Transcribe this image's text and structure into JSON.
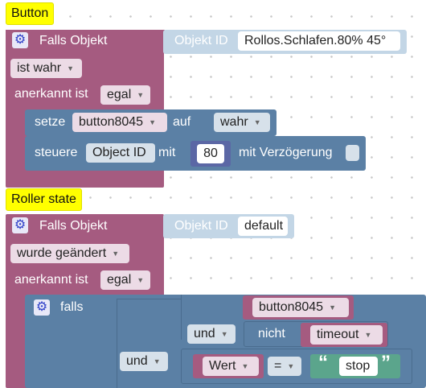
{
  "block1": {
    "hat": "Button",
    "title": "Falls Objekt",
    "objid_label": "Objekt ID",
    "objid_value": "Rollos.Schlafen.80% 45°",
    "condition": "ist wahr",
    "ack_label": "anerkannt ist",
    "ack_value": "egal",
    "set_label": "setze",
    "set_var": "button8045",
    "set_to": "auf",
    "set_value": "wahr",
    "control_label": "steuere",
    "control_target": "Object ID",
    "control_with": "mit",
    "control_value": "80",
    "control_delay": "mit Verzögerung"
  },
  "block2": {
    "hat": "Roller state",
    "title": "Falls Objekt",
    "objid_label": "Objekt ID",
    "objid_value": "default",
    "condition": "wurde geändert",
    "ack_label": "anerkannt ist",
    "ack_value": "egal",
    "if_label": "falls",
    "var1": "button8045",
    "and_label": "und",
    "not_label": "nicht",
    "var2": "timeout",
    "and2_label": "und",
    "value_label": "Wert",
    "eq_label": "=",
    "string_value": "stop"
  },
  "colors": {
    "event_block": "#a55b80",
    "sub_block": "#5b80a5",
    "hat": "#ffff00"
  }
}
